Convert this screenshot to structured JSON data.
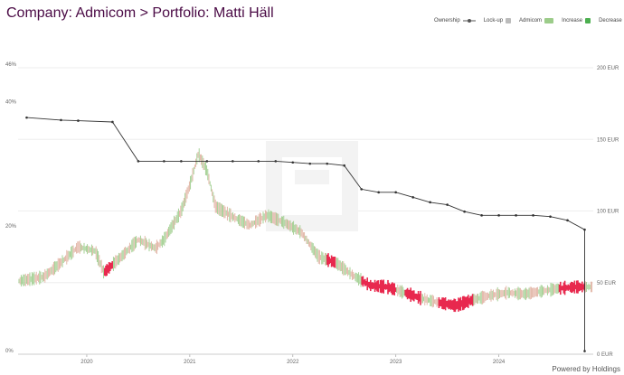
{
  "title": "Company: Admicom > Portfolio: Matti Häll",
  "legend": {
    "ownership": "Ownership",
    "lockup": "Lock-up",
    "admicom": "Admicom",
    "increase": "Increase",
    "decrease": "Decrease"
  },
  "footer": "Powered by Holdings",
  "colors": {
    "title": "#4a0a45",
    "ownership": "#333333",
    "lockup": "#bbbbbb",
    "price_up": "#9ccc8a",
    "price_down": "#e0b0a0",
    "decrease": "#e8294e",
    "increase": "#4caf50"
  },
  "chart_data": {
    "type": "line",
    "x_axis": {
      "ticks": [
        "2020",
        "2021",
        "2022",
        "2023",
        "2024"
      ]
    },
    "y_left": {
      "label": "",
      "range": [
        0,
        46
      ],
      "ticks": [
        "0%",
        "20%",
        "40%",
        "46%"
      ]
    },
    "y_right": {
      "label": "",
      "range": [
        0,
        200
      ],
      "ticks": [
        "0 EUR",
        "50 EUR",
        "100 EUR",
        "150 EUR",
        "200 EUR"
      ]
    },
    "series": [
      {
        "name": "Ownership",
        "axis": "left",
        "points": [
          [
            "2019-06",
            38.0
          ],
          [
            "2019-10",
            37.6
          ],
          [
            "2019-12",
            37.5
          ],
          [
            "2020-04",
            37.3
          ],
          [
            "2020-07",
            31.0
          ],
          [
            "2020-10",
            31.0
          ],
          [
            "2020-12",
            31.0
          ],
          [
            "2021-03",
            31.0
          ],
          [
            "2021-06",
            31.0
          ],
          [
            "2021-09",
            31.0
          ],
          [
            "2021-11",
            31.0
          ],
          [
            "2022-01",
            30.8
          ],
          [
            "2022-03",
            30.6
          ],
          [
            "2022-05",
            30.6
          ],
          [
            "2022-07",
            30.3
          ],
          [
            "2022-09",
            26.5
          ],
          [
            "2022-11",
            26.0
          ],
          [
            "2023-01",
            26.0
          ],
          [
            "2023-03",
            25.2
          ],
          [
            "2023-05",
            24.4
          ],
          [
            "2023-07",
            24.0
          ],
          [
            "2023-09",
            22.9
          ],
          [
            "2023-11",
            22.3
          ],
          [
            "2024-01",
            22.3
          ],
          [
            "2024-03",
            22.3
          ],
          [
            "2024-05",
            22.3
          ],
          [
            "2024-07",
            22.1
          ],
          [
            "2024-09",
            21.5
          ],
          [
            "2024-11",
            20.0
          ],
          [
            "2024-11",
            0.5
          ]
        ]
      },
      {
        "name": "Admicom",
        "axis": "right",
        "points": [
          [
            "2019-06",
            52
          ],
          [
            "2019-08",
            54
          ],
          [
            "2019-10",
            64
          ],
          [
            "2019-12",
            75
          ],
          [
            "2020-02",
            72
          ],
          [
            "2020-03",
            57
          ],
          [
            "2020-05",
            68
          ],
          [
            "2020-07",
            80
          ],
          [
            "2020-09",
            74
          ],
          [
            "2020-10",
            80
          ],
          [
            "2020-12",
            100
          ],
          [
            "2021-01",
            118
          ],
          [
            "2021-02",
            140
          ],
          [
            "2021-03",
            128
          ],
          [
            "2021-04",
            103
          ],
          [
            "2021-06",
            96
          ],
          [
            "2021-08",
            90
          ],
          [
            "2021-10",
            97
          ],
          [
            "2021-12",
            92
          ],
          [
            "2022-02",
            85
          ],
          [
            "2022-04",
            68
          ],
          [
            "2022-06",
            64
          ],
          [
            "2022-08",
            55
          ],
          [
            "2022-10",
            48
          ],
          [
            "2022-12",
            47
          ],
          [
            "2023-02",
            43
          ],
          [
            "2023-04",
            39
          ],
          [
            "2023-06",
            36
          ],
          [
            "2023-08",
            34
          ],
          [
            "2023-10",
            38
          ],
          [
            "2023-12",
            41
          ],
          [
            "2024-02",
            43
          ],
          [
            "2024-04",
            42
          ],
          [
            "2024-06",
            44
          ],
          [
            "2024-08",
            46
          ],
          [
            "2024-10",
            47
          ],
          [
            "2024-11",
            47
          ]
        ]
      }
    ],
    "decrease_periods": [
      [
        "2020-03",
        "2020-04"
      ],
      [
        "2022-05",
        "2022-06"
      ],
      [
        "2022-09",
        "2023-01"
      ],
      [
        "2023-02",
        "2023-04"
      ],
      [
        "2023-06",
        "2023-10"
      ],
      [
        "2024-08",
        "2024-11"
      ]
    ],
    "grid": true,
    "legend_position": "top-right"
  }
}
